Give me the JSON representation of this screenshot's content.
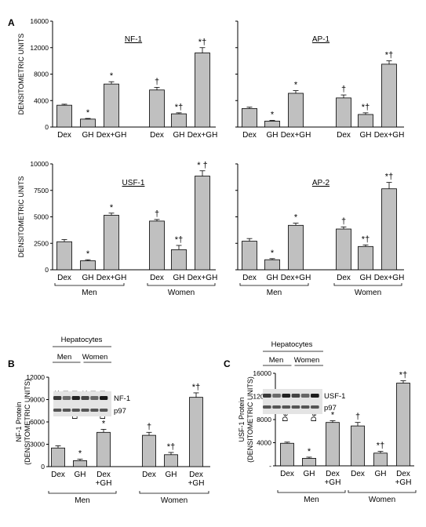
{
  "figure": {
    "panel_labels": [
      "A",
      "B",
      "C"
    ],
    "y_label_A": "DENSITOMETRIC UNITS",
    "group_men": "Men",
    "group_women": "Women"
  },
  "chart_data": [
    {
      "id": "nf1_a",
      "type": "bar",
      "title": "NF-1",
      "ylabel": "DENSITOMETRIC UNITS",
      "ylim": [
        0,
        16000
      ],
      "yticks": [
        "0",
        "4000",
        "8000",
        "12000",
        "16000"
      ],
      "categories": [
        "Dex",
        "GH",
        "Dex+GH",
        "Dex",
        "GH",
        "Dex+GH"
      ],
      "values": [
        3300,
        1200,
        6500,
        5600,
        2000,
        11200
      ],
      "errors": [
        150,
        100,
        350,
        400,
        150,
        800
      ],
      "marks": [
        "",
        "*",
        "*",
        "†",
        "*†",
        "*†"
      ],
      "bar_color": "#c0c0c0"
    },
    {
      "id": "ap1_a",
      "type": "bar",
      "title": "AP-1",
      "ylim": [
        0,
        16000
      ],
      "categories": [
        "Dex",
        "GH",
        "Dex+GH",
        "Dex",
        "GH",
        "Dex+GH"
      ],
      "values": [
        2800,
        900,
        5100,
        4400,
        1900,
        9500
      ],
      "errors": [
        200,
        100,
        400,
        450,
        250,
        500
      ],
      "marks": [
        "",
        "*",
        "*",
        "†",
        "*†",
        "*†"
      ],
      "bar_color": "#c0c0c0"
    },
    {
      "id": "usf1_a",
      "type": "bar",
      "title": "USF-1",
      "ylabel": "DENSITOMETRIC UNITS",
      "ylim": [
        0,
        10000
      ],
      "yticks": [
        "0",
        "2500",
        "5000",
        "7500",
        "10000"
      ],
      "categories": [
        "Dex",
        "GH",
        "Dex+GH",
        "Dex",
        "GH",
        "Dex+GH"
      ],
      "values": [
        2650,
        850,
        5150,
        4600,
        1900,
        8850
      ],
      "errors": [
        200,
        100,
        200,
        150,
        400,
        500
      ],
      "marks": [
        "",
        "*",
        "*",
        "†",
        "*†",
        "* †"
      ],
      "bar_color": "#c0c0c0"
    },
    {
      "id": "ap2_a",
      "type": "bar",
      "title": "AP-2",
      "ylim": [
        0,
        10000
      ],
      "categories": [
        "Dex",
        "GH",
        "Dex+GH",
        "Dex",
        "GH",
        "Dex+GH"
      ],
      "values": [
        2700,
        950,
        4200,
        3850,
        2200,
        7650
      ],
      "errors": [
        250,
        100,
        200,
        200,
        150,
        600
      ],
      "marks": [
        "",
        "*",
        "*",
        "†",
        "*†",
        "*†"
      ],
      "bar_color": "#c0c0c0"
    },
    {
      "id": "nf1_b",
      "type": "bar",
      "ylabel": "NF-1 Protein (DENSITOMETRIC UNITS)",
      "ylim": [
        0,
        12000
      ],
      "yticks": [
        "0",
        "3000",
        "6000",
        "9000",
        "12000"
      ],
      "categories": [
        "Dex",
        "GH",
        "Dex +GH",
        "Dex",
        "GH",
        "Dex +GH"
      ],
      "values": [
        2500,
        800,
        4600,
        4200,
        1600,
        9300
      ],
      "errors": [
        300,
        200,
        400,
        400,
        300,
        600
      ],
      "marks": [
        "",
        "*",
        "*",
        "†",
        "*†",
        "*†"
      ],
      "blot": {
        "header": "Hepatocytes",
        "lanes": [
          "Dex",
          "GH",
          "Dex+GH",
          "Dex",
          "GH",
          "Dex+GH"
        ],
        "bands": [
          "NF-1",
          "p97"
        ]
      },
      "bar_color": "#c0c0c0"
    },
    {
      "id": "usf1_c",
      "type": "bar",
      "ylabel": "USF-1 Protein (DENSITOMETRIC UNITS)",
      "ylim": [
        0,
        16000
      ],
      "yticks": [
        "-",
        "4000",
        "8000",
        "12000",
        "16000"
      ],
      "categories": [
        "Dex",
        "GH",
        "Dex +GH",
        "Dex",
        "GH",
        "Dex +GH"
      ],
      "values": [
        3900,
        1300,
        7500,
        6900,
        2200,
        14300
      ],
      "errors": [
        200,
        200,
        300,
        600,
        300,
        400
      ],
      "marks": [
        "",
        "*",
        "*",
        "†",
        "*†",
        "*†"
      ],
      "blot": {
        "header": "Hepatocytes",
        "lanes": [
          "Dex",
          "GH",
          "Dex+GH",
          "Dex",
          "GH",
          "Dex+GH"
        ],
        "bands": [
          "USF-1",
          "p97"
        ]
      },
      "bar_color": "#c0c0c0"
    }
  ]
}
